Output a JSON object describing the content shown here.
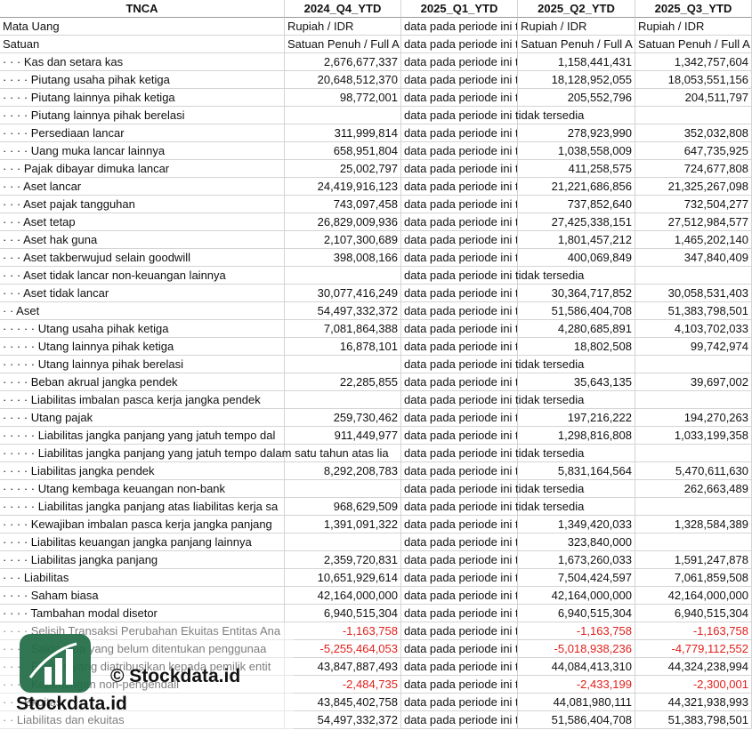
{
  "table": {
    "header": [
      "TNCA",
      "2024_Q4_YTD",
      "2025_Q1_YTD",
      "2025_Q2_YTD",
      "2025_Q3_YTD"
    ],
    "rows": [
      [
        "Mata Uang",
        "Rupiah / IDR",
        "data pada periode ini tidak tersedia",
        "Rupiah / IDR",
        "Rupiah / IDR"
      ],
      [
        "Satuan",
        "Satuan Penuh / Full A",
        "data pada periode ini tidak tersedia",
        "Satuan Penuh / Full A",
        "Satuan Penuh / Full A"
      ],
      [
        "· · · Kas dan setara kas",
        "2,676,677,337",
        "data pada periode ini tidak tersedia",
        "1,158,441,431",
        "1,342,757,604"
      ],
      [
        "· · · · Piutang usaha pihak ketiga",
        "20,648,512,370",
        "data pada periode ini tidak tersedia",
        "18,128,952,055",
        "18,053,551,156"
      ],
      [
        "· · · · Piutang lainnya pihak ketiga",
        "98,772,001",
        "data pada periode ini tidak tersedia",
        "205,552,796",
        "204,511,797"
      ],
      [
        "· · · · Piutang lainnya pihak berelasi",
        null,
        "data pada periode ini tidak tersedia",
        null,
        null
      ],
      [
        "· · · · Persediaan lancar",
        "311,999,814",
        "data pada periode ini tidak tersedia",
        "278,923,990",
        "352,032,808"
      ],
      [
        "· · · · Uang muka lancar lainnya",
        "658,951,804",
        "data pada periode ini tidak tersedia",
        "1,038,558,009",
        "647,735,925"
      ],
      [
        "· · · Pajak dibayar dimuka lancar",
        "25,002,797",
        "data pada periode ini tidak tersedia",
        "411,258,575",
        "724,677,808"
      ],
      [
        "· · · Aset lancar",
        "24,419,916,123",
        "data pada periode ini tidak tersedia",
        "21,221,686,856",
        "21,325,267,098"
      ],
      [
        "· · · Aset pajak tangguhan",
        "743,097,458",
        "data pada periode ini tidak tersedia",
        "737,852,640",
        "732,504,277"
      ],
      [
        "· · · Aset tetap",
        "26,829,009,936",
        "data pada periode ini tidak tersedia",
        "27,425,338,151",
        "27,512,984,577"
      ],
      [
        "· · · Aset hak guna",
        "2,107,300,689",
        "data pada periode ini tidak tersedia",
        "1,801,457,212",
        "1,465,202,140"
      ],
      [
        "· · · Aset takberwujud selain goodwill",
        "398,008,166",
        "data pada periode ini tidak tersedia",
        "400,069,849",
        "347,840,409"
      ],
      [
        "· · · Aset tidak lancar non-keuangan lainnya",
        null,
        "data pada periode ini tidak tersedia",
        null,
        null
      ],
      [
        "· · · Aset tidak lancar",
        "30,077,416,249",
        "data pada periode ini tidak tersedia",
        "30,364,717,852",
        "30,058,531,403"
      ],
      [
        "· · Aset",
        "54,497,332,372",
        "data pada periode ini tidak tersedia",
        "51,586,404,708",
        "51,383,798,501"
      ],
      [
        "· · · · · Utang usaha pihak ketiga",
        "7,081,864,388",
        "data pada periode ini tidak tersedia",
        "4,280,685,891",
        "4,103,702,033"
      ],
      [
        "· · · · · Utang lainnya pihak ketiga",
        "16,878,101",
        "data pada periode ini tidak tersedia",
        "18,802,508",
        "99,742,974"
      ],
      [
        "· · · · · Utang lainnya pihak berelasi",
        null,
        "data pada periode ini tidak tersedia",
        null,
        null
      ],
      [
        "· · · · Beban akrual jangka pendek",
        "22,285,855",
        "data pada periode ini tidak tersedia",
        "35,643,135",
        "39,697,002"
      ],
      [
        "· · · · Liabilitas imbalan pasca kerja jangka pendek",
        null,
        "data pada periode ini tidak tersedia",
        null,
        null
      ],
      [
        "· · · · Utang pajak",
        "259,730,462",
        "data pada periode ini tidak tersedia",
        "197,216,222",
        "194,270,263"
      ],
      [
        "· · · · · Liabilitas jangka panjang yang jatuh tempo dal",
        "911,449,977",
        "data pada periode ini tidak tersedia",
        "1,298,816,808",
        "1,033,199,358"
      ],
      [
        "· · · · · Liabilitas jangka panjang yang jatuh tempo dalam satu tahun atas lia",
        null,
        "data pada periode ini tidak tersedia",
        null,
        null
      ],
      [
        "· · · · Liabilitas jangka pendek",
        "8,292,208,783",
        "data pada periode ini tidak tersedia",
        "5,831,164,564",
        "5,470,611,630"
      ],
      [
        "· · · · · Utang kembaga keuangan non-bank",
        null,
        "data pada periode ini tidak tersedia",
        null,
        "262,663,489"
      ],
      [
        "· · · · · Liabilitas jangka panjang atas liabilitas kerja sa",
        "968,629,509",
        "data pada periode ini tidak tersedia",
        null,
        null
      ],
      [
        "· · · · Kewajiban imbalan pasca kerja jangka panjang",
        "1,391,091,322",
        "data pada periode ini tidak tersedia",
        "1,349,420,033",
        "1,328,584,389"
      ],
      [
        "· · · · Liabilitas keuangan jangka panjang lainnya",
        null,
        "data pada periode ini tidak tersedia",
        "323,840,000",
        null
      ],
      [
        "· · · · Liabilitas jangka panjang",
        "2,359,720,831",
        "data pada periode ini tidak tersedia",
        "1,673,260,033",
        "1,591,247,878"
      ],
      [
        "· · · Liabilitas",
        "10,651,929,614",
        "data pada periode ini tidak tersedia",
        "7,504,424,597",
        "7,061,859,508"
      ],
      [
        "· · · · Saham biasa",
        "42,164,000,000",
        "data pada periode ini tidak tersedia",
        "42,164,000,000",
        "42,164,000,000"
      ],
      [
        "· · · · Tambahan modal disetor",
        "6,940,515,304",
        "data pada periode ini tidak tersedia",
        "6,940,515,304",
        "6,940,515,304"
      ],
      [
        "· · · · Selisih Transaksi Perubahan Ekuitas Entitas Ana",
        "-1,163,758",
        "data pada periode ini tidak tersedia",
        "-1,163,758",
        "-1,163,758"
      ],
      [
        "· · · · Saldo laba yang belum ditentukan penggunaa",
        "-5,255,464,053",
        "data pada periode ini tidak tersedia",
        "-5,018,938,236",
        "-4,779,112,552"
      ],
      [
        "· · · · Ekuitas yang diatribusikan kepada pemilik entit",
        "43,847,887,493",
        "data pada periode ini tidak tersedia",
        "44,084,413,310",
        "44,324,238,994"
      ],
      [
        "· · · · Kepentingan non-pengendali",
        "-2,484,735",
        "data pada periode ini tidak tersedia",
        "-2,433,199",
        "-2,300,001"
      ],
      [
        "· · · Ekuitas",
        "43,845,402,758",
        "data pada periode ini tidak tersedia",
        "44,081,980,111",
        "44,321,938,993"
      ],
      [
        "· · Liabilitas dan ekuitas",
        "54,497,332,372",
        "data pada periode ini tidak tersedia",
        "51,586,404,708",
        "51,383,798,501"
      ]
    ]
  },
  "watermark": {
    "brand": "© Stockdata.id",
    "logo_text": "Stockdata.id"
  }
}
